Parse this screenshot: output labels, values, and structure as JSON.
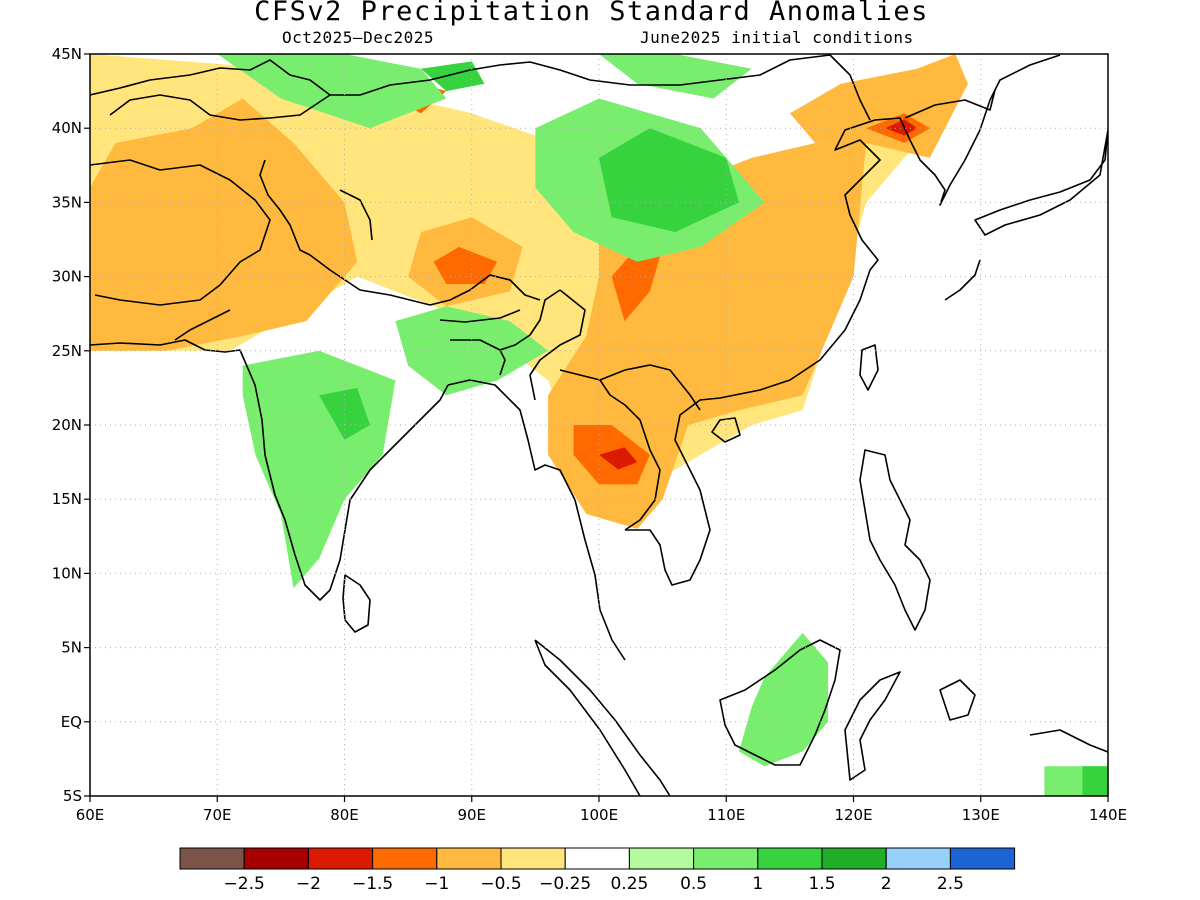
{
  "title": "CFSv2 Precipitation Standard Anomalies",
  "subtitle_left": "Oct2025–Dec2025",
  "subtitle_right": "June2025 initial conditions",
  "map": {
    "lon_range": [
      60,
      140
    ],
    "lat_range": [
      -5,
      45
    ],
    "lon_ticks": [
      {
        "value": 60,
        "label": "60E"
      },
      {
        "value": 70,
        "label": "70E"
      },
      {
        "value": 80,
        "label": "80E"
      },
      {
        "value": 90,
        "label": "90E"
      },
      {
        "value": 100,
        "label": "100E"
      },
      {
        "value": 110,
        "label": "110E"
      },
      {
        "value": 120,
        "label": "120E"
      },
      {
        "value": 130,
        "label": "130E"
      },
      {
        "value": 140,
        "label": "140E"
      }
    ],
    "lat_ticks": [
      {
        "value": 45,
        "label": "45N"
      },
      {
        "value": 40,
        "label": "40N"
      },
      {
        "value": 35,
        "label": "35N"
      },
      {
        "value": 30,
        "label": "30N"
      },
      {
        "value": 25,
        "label": "25N"
      },
      {
        "value": 20,
        "label": "20N"
      },
      {
        "value": 15,
        "label": "15N"
      },
      {
        "value": 10,
        "label": "10N"
      },
      {
        "value": 5,
        "label": "5N"
      },
      {
        "value": 0,
        "label": "EQ"
      },
      {
        "value": -5,
        "label": "5S"
      }
    ],
    "grid": "dotted"
  },
  "colorbar": {
    "colors": [
      "#7b5447",
      "#a80000",
      "#dc1a00",
      "#ff6a00",
      "#ffb93f",
      "#ffe57c",
      "#ffffff",
      "#b4fa9e",
      "#79ee6e",
      "#36d33f",
      "#1fae28",
      "#97d1fa",
      "#1c64d5"
    ],
    "labels": [
      "−2.5",
      "−2",
      "−1.5",
      "−1",
      "−0.5",
      "−0.25",
      "0.25",
      "0.5",
      "1",
      "1.5",
      "2",
      "2.5"
    ]
  },
  "anomaly_regions": [
    {
      "level": "-0.25",
      "points": [
        [
          60,
          45
        ],
        [
          75,
          44
        ],
        [
          90,
          41
        ],
        [
          100,
          38
        ],
        [
          107,
          36
        ],
        [
          115,
          37
        ],
        [
          124,
          42
        ],
        [
          128,
          44
        ],
        [
          125,
          39
        ],
        [
          121,
          35
        ],
        [
          119,
          29
        ],
        [
          116,
          21
        ],
        [
          112,
          20
        ],
        [
          106,
          17
        ],
        [
          102,
          15
        ],
        [
          99,
          16
        ],
        [
          96,
          23
        ],
        [
          90,
          27
        ],
        [
          81,
          30
        ],
        [
          77,
          28
        ],
        [
          71,
          25
        ],
        [
          60,
          25
        ]
      ]
    },
    {
      "level": "-0.5",
      "points": [
        [
          60,
          36
        ],
        [
          62,
          39
        ],
        [
          68,
          40
        ],
        [
          72,
          42
        ],
        [
          76,
          39
        ],
        [
          80,
          35
        ],
        [
          81,
          31
        ],
        [
          77,
          27
        ],
        [
          72,
          26
        ],
        [
          66,
          25
        ],
        [
          60,
          25
        ]
      ]
    },
    {
      "level": "-0.5",
      "points": [
        [
          100,
          34
        ],
        [
          106,
          36
        ],
        [
          112,
          38
        ],
        [
          117,
          39
        ],
        [
          121,
          39
        ],
        [
          120,
          30
        ],
        [
          116,
          22
        ],
        [
          111,
          21
        ],
        [
          107,
          20
        ],
        [
          105,
          15
        ],
        [
          103,
          13
        ],
        [
          99,
          14
        ],
        [
          96,
          18
        ],
        [
          96,
          22
        ],
        [
          99,
          26
        ],
        [
          100,
          30
        ]
      ]
    },
    {
      "level": "-0.5",
      "points": [
        [
          115,
          41
        ],
        [
          119,
          43
        ],
        [
          125,
          44
        ],
        [
          128,
          45
        ],
        [
          129,
          43
        ],
        [
          126,
          38
        ],
        [
          121,
          39
        ],
        [
          117,
          39
        ]
      ]
    },
    {
      "level": "-0.5",
      "points": [
        [
          86,
          33
        ],
        [
          90,
          34
        ],
        [
          94,
          32
        ],
        [
          93,
          29
        ],
        [
          88,
          28
        ],
        [
          85,
          30
        ]
      ]
    },
    {
      "level": "-1",
      "points": [
        [
          101,
          30
        ],
        [
          103,
          32
        ],
        [
          105,
          32
        ],
        [
          104,
          29
        ],
        [
          102,
          27
        ]
      ]
    },
    {
      "level": "-1",
      "points": [
        [
          98,
          20
        ],
        [
          101,
          20
        ],
        [
          104,
          18
        ],
        [
          103,
          16
        ],
        [
          100,
          16
        ],
        [
          98,
          18
        ]
      ]
    },
    {
      "level": "-1",
      "points": [
        [
          87,
          31
        ],
        [
          89,
          32
        ],
        [
          92,
          31
        ],
        [
          91,
          29.5
        ],
        [
          88,
          29.5
        ]
      ]
    },
    {
      "level": "-1",
      "points": [
        [
          84,
          42
        ],
        [
          86,
          43
        ],
        [
          88,
          42.5
        ],
        [
          86,
          41
        ]
      ]
    },
    {
      "level": "-1",
      "points": [
        [
          121,
          40
        ],
        [
          124,
          41
        ],
        [
          126,
          40
        ],
        [
          124,
          39
        ]
      ]
    },
    {
      "level": "-1.5",
      "points": [
        [
          85.5,
          42
        ],
        [
          86.5,
          42.5
        ],
        [
          87.5,
          42
        ],
        [
          86.5,
          41.5
        ]
      ]
    },
    {
      "level": "-1.5",
      "points": [
        [
          122.5,
          40
        ],
        [
          124,
          40.6
        ],
        [
          125,
          40
        ],
        [
          124,
          39.5
        ]
      ]
    },
    {
      "level": "-1.5",
      "points": [
        [
          100,
          18
        ],
        [
          102,
          18.5
        ],
        [
          103,
          17.5
        ],
        [
          101.5,
          17
        ]
      ]
    },
    {
      "level": "0.5",
      "points": [
        [
          95,
          40
        ],
        [
          100,
          42
        ],
        [
          108,
          40
        ],
        [
          113,
          35
        ],
        [
          108,
          32
        ],
        [
          103,
          31
        ],
        [
          98,
          33
        ],
        [
          95,
          36
        ]
      ]
    },
    {
      "level": "0.5",
      "points": [
        [
          72,
          24
        ],
        [
          78,
          25
        ],
        [
          84,
          23
        ],
        [
          83,
          18
        ],
        [
          80,
          15
        ],
        [
          78,
          11
        ],
        [
          76,
          9
        ],
        [
          75,
          14
        ],
        [
          73,
          18
        ],
        [
          72,
          22
        ]
      ]
    },
    {
      "level": "0.5",
      "points": [
        [
          84,
          27
        ],
        [
          88,
          28
        ],
        [
          93,
          27
        ],
        [
          96,
          25
        ],
        [
          92,
          23
        ],
        [
          88,
          22
        ],
        [
          85,
          24
        ]
      ]
    },
    {
      "level": "0.5",
      "points": [
        [
          70,
          45
        ],
        [
          80,
          45
        ],
        [
          86,
          44
        ],
        [
          88,
          42
        ],
        [
          82,
          40
        ],
        [
          75,
          42
        ]
      ]
    },
    {
      "level": "0.5",
      "points": [
        [
          100,
          45
        ],
        [
          106,
          45
        ],
        [
          112,
          44
        ],
        [
          109,
          42
        ],
        [
          103,
          43
        ]
      ]
    },
    {
      "level": "0.5",
      "points": [
        [
          113,
          3
        ],
        [
          116,
          6
        ],
        [
          118,
          4
        ],
        [
          118,
          0
        ],
        [
          116,
          -2
        ],
        [
          113,
          -3
        ],
        [
          111,
          -2
        ],
        [
          112,
          1
        ]
      ]
    },
    {
      "level": "0.5",
      "points": [
        [
          135,
          -3
        ],
        [
          140,
          -3
        ],
        [
          140,
          -5
        ],
        [
          135,
          -5
        ]
      ]
    },
    {
      "level": "1",
      "points": [
        [
          100,
          38
        ],
        [
          104,
          40
        ],
        [
          110,
          38
        ],
        [
          111,
          35
        ],
        [
          106,
          33
        ],
        [
          101,
          34
        ]
      ]
    },
    {
      "level": "1",
      "points": [
        [
          78,
          22
        ],
        [
          81,
          22.5
        ],
        [
          82,
          20
        ],
        [
          80,
          19
        ]
      ]
    },
    {
      "level": "1",
      "points": [
        [
          138,
          -3
        ],
        [
          140,
          -3
        ],
        [
          140,
          -5
        ],
        [
          138,
          -5
        ]
      ]
    },
    {
      "level": "1",
      "points": [
        [
          86,
          44
        ],
        [
          90,
          44.5
        ],
        [
          91,
          43
        ],
        [
          88,
          42.5
        ]
      ]
    }
  ]
}
